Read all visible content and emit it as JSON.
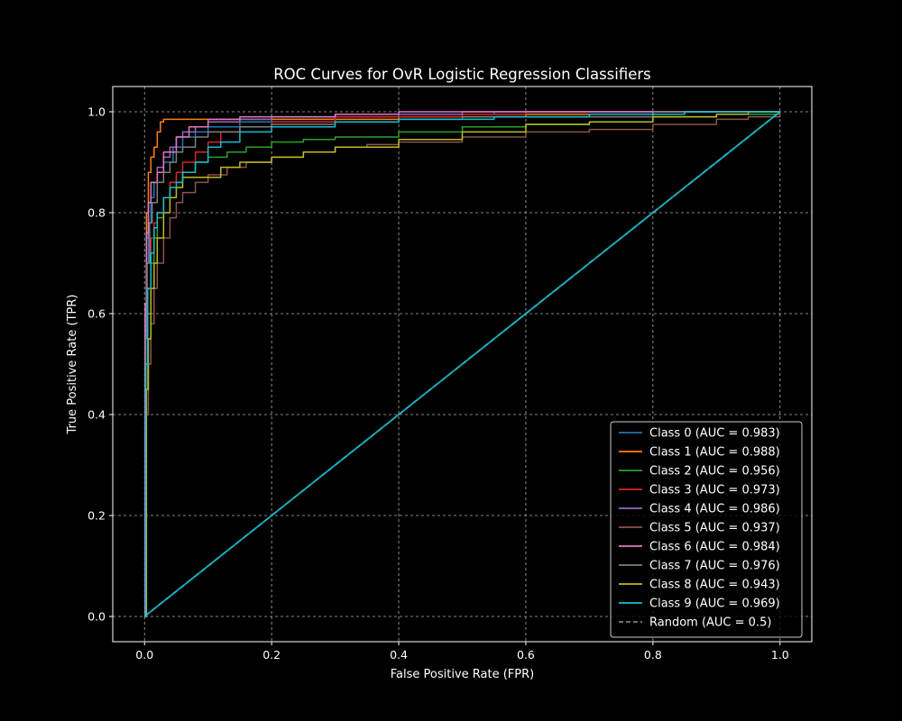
{
  "chart_data": {
    "type": "line",
    "title": "ROC Curves for OvR Logistic Regression Classifiers",
    "xlabel": "False Positive Rate (FPR)",
    "ylabel": "True Positive Rate (TPR)",
    "xlim": [
      -0.05,
      1.05
    ],
    "ylim": [
      -0.05,
      1.05
    ],
    "x_ticks": [
      0.0,
      0.2,
      0.4,
      0.6,
      0.8,
      1.0
    ],
    "y_ticks": [
      0.0,
      0.2,
      0.4,
      0.6,
      0.8,
      1.0
    ],
    "x_tick_labels": [
      "0.0",
      "0.2",
      "0.4",
      "0.6",
      "0.8",
      "1.0"
    ],
    "y_tick_labels": [
      "0.0",
      "0.2",
      "0.4",
      "0.6",
      "0.8",
      "1.0"
    ],
    "grid": true,
    "legend_position": "lower-right",
    "theme": {
      "background": "#000000",
      "foreground": "#ffffff",
      "grid": "#b0b0b0"
    },
    "series": [
      {
        "name": "Class 0 (AUC = 0.983)",
        "color": "#1f77b4",
        "x": [
          0,
          0.001,
          0.003,
          0.006,
          0.01,
          0.015,
          0.02,
          0.03,
          0.045,
          0.06,
          0.08,
          0.1,
          0.15,
          0.2,
          0.3,
          0.4,
          0.55,
          0.7,
          0.85,
          1.0
        ],
        "y": [
          0,
          0.55,
          0.7,
          0.78,
          0.83,
          0.86,
          0.88,
          0.9,
          0.93,
          0.95,
          0.96,
          0.97,
          0.98,
          0.985,
          0.99,
          0.995,
          1.0,
          1.0,
          1.0,
          1.0
        ]
      },
      {
        "name": "Class 1 (AUC = 0.988)",
        "color": "#ff7f0e",
        "x": [
          0,
          0.001,
          0.003,
          0.006,
          0.01,
          0.015,
          0.02,
          0.025,
          0.03,
          0.05,
          0.1,
          0.2,
          0.4,
          0.6,
          0.8,
          1.0
        ],
        "y": [
          0,
          0.6,
          0.8,
          0.88,
          0.91,
          0.93,
          0.96,
          0.98,
          0.985,
          0.985,
          0.985,
          0.985,
          0.99,
          0.995,
          1.0,
          1.0
        ]
      },
      {
        "name": "Class 2 (AUC = 0.956)",
        "color": "#2ca02c",
        "x": [
          0,
          0.002,
          0.005,
          0.01,
          0.015,
          0.02,
          0.03,
          0.04,
          0.06,
          0.08,
          0.1,
          0.13,
          0.16,
          0.2,
          0.25,
          0.3,
          0.4,
          0.5,
          0.6,
          0.7,
          0.8,
          0.9,
          1.0
        ],
        "y": [
          0,
          0.45,
          0.6,
          0.7,
          0.75,
          0.79,
          0.83,
          0.86,
          0.88,
          0.9,
          0.91,
          0.92,
          0.93,
          0.94,
          0.945,
          0.95,
          0.96,
          0.97,
          0.975,
          0.98,
          0.99,
          0.995,
          1.0
        ]
      },
      {
        "name": "Class 3 (AUC = 0.973)",
        "color": "#d62728",
        "x": [
          0,
          0.002,
          0.005,
          0.01,
          0.015,
          0.02,
          0.03,
          0.04,
          0.05,
          0.06,
          0.08,
          0.1,
          0.12,
          0.15,
          0.2,
          0.3,
          0.4,
          0.5,
          0.6,
          0.8,
          1.0
        ],
        "y": [
          0,
          0.5,
          0.65,
          0.75,
          0.78,
          0.8,
          0.83,
          0.86,
          0.88,
          0.9,
          0.92,
          0.94,
          0.96,
          0.97,
          0.98,
          0.99,
          0.99,
          0.995,
          1.0,
          1.0,
          1.0
        ]
      },
      {
        "name": "Class 4 (AUC = 0.986)",
        "color": "#9467bd",
        "x": [
          0,
          0.001,
          0.003,
          0.006,
          0.01,
          0.02,
          0.03,
          0.04,
          0.05,
          0.06,
          0.08,
          0.1,
          0.15,
          0.2,
          0.3,
          0.5,
          0.7,
          1.0
        ],
        "y": [
          0,
          0.6,
          0.75,
          0.82,
          0.86,
          0.89,
          0.91,
          0.93,
          0.95,
          0.96,
          0.97,
          0.98,
          0.985,
          0.99,
          0.995,
          1.0,
          1.0,
          1.0
        ]
      },
      {
        "name": "Class 5 (AUC = 0.937)",
        "color": "#8c564b",
        "x": [
          0,
          0.003,
          0.006,
          0.01,
          0.015,
          0.02,
          0.03,
          0.04,
          0.05,
          0.06,
          0.08,
          0.1,
          0.13,
          0.16,
          0.2,
          0.25,
          0.3,
          0.35,
          0.4,
          0.5,
          0.6,
          0.7,
          0.8,
          0.9,
          0.95,
          1.0
        ],
        "y": [
          0,
          0.4,
          0.5,
          0.58,
          0.65,
          0.7,
          0.75,
          0.79,
          0.82,
          0.84,
          0.86,
          0.875,
          0.89,
          0.9,
          0.91,
          0.92,
          0.93,
          0.935,
          0.94,
          0.95,
          0.96,
          0.965,
          0.975,
          0.985,
          0.99,
          1.0
        ]
      },
      {
        "name": "Class 6 (AUC = 0.984)",
        "color": "#e377c2",
        "x": [
          0,
          0.001,
          0.003,
          0.006,
          0.01,
          0.02,
          0.03,
          0.05,
          0.07,
          0.1,
          0.15,
          0.2,
          0.3,
          0.4,
          0.6,
          0.8,
          1.0
        ],
        "y": [
          0,
          0.62,
          0.76,
          0.82,
          0.86,
          0.88,
          0.92,
          0.95,
          0.97,
          0.985,
          0.99,
          0.99,
          0.995,
          1.0,
          1.0,
          1.0,
          1.0
        ]
      },
      {
        "name": "Class 7 (AUC = 0.976)",
        "color": "#7f7f7f",
        "x": [
          0,
          0.002,
          0.004,
          0.008,
          0.012,
          0.02,
          0.03,
          0.04,
          0.05,
          0.06,
          0.08,
          0.1,
          0.15,
          0.2,
          0.3,
          0.4,
          0.5,
          0.6,
          0.8,
          1.0
        ],
        "y": [
          0,
          0.55,
          0.7,
          0.78,
          0.82,
          0.86,
          0.88,
          0.9,
          0.92,
          0.93,
          0.95,
          0.96,
          0.97,
          0.975,
          0.98,
          0.985,
          0.99,
          0.99,
          1.0,
          1.0
        ]
      },
      {
        "name": "Class 8 (AUC = 0.943)",
        "color": "#bcbd22",
        "x": [
          0,
          0.003,
          0.006,
          0.01,
          0.015,
          0.02,
          0.03,
          0.04,
          0.05,
          0.06,
          0.08,
          0.1,
          0.12,
          0.15,
          0.2,
          0.25,
          0.3,
          0.4,
          0.5,
          0.6,
          0.7,
          0.8,
          0.9,
          0.95,
          1.0
        ],
        "y": [
          0,
          0.45,
          0.55,
          0.65,
          0.7,
          0.75,
          0.8,
          0.83,
          0.85,
          0.87,
          0.87,
          0.87,
          0.89,
          0.9,
          0.91,
          0.92,
          0.93,
          0.945,
          0.96,
          0.975,
          0.98,
          0.99,
          0.995,
          1.0,
          1.0
        ]
      },
      {
        "name": "Class 9 (AUC = 0.969)",
        "color": "#17becf",
        "x": [
          0,
          0.002,
          0.005,
          0.01,
          0.015,
          0.02,
          0.03,
          0.04,
          0.05,
          0.06,
          0.08,
          0.1,
          0.12,
          0.15,
          0.2,
          0.3,
          0.4,
          0.55,
          0.7,
          0.85,
          1.0
        ],
        "y": [
          0,
          0.5,
          0.65,
          0.72,
          0.77,
          0.8,
          0.83,
          0.85,
          0.86,
          0.88,
          0.9,
          0.93,
          0.94,
          0.96,
          0.97,
          0.98,
          0.985,
          0.99,
          0.995,
          1.0,
          1.0
        ]
      },
      {
        "name": "Random (AUC = 0.5)",
        "color": "#7f7f7f",
        "dashed": true,
        "x": [
          0,
          1
        ],
        "y": [
          0,
          1
        ]
      }
    ]
  }
}
